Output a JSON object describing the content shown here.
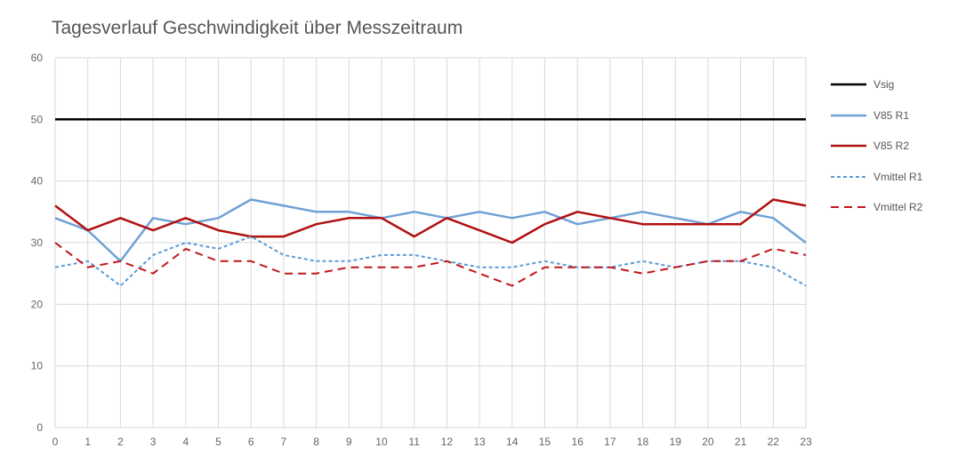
{
  "chart_data": {
    "type": "line",
    "title": "Tagesverlauf Geschwindigkeit über Messzeitraum",
    "xlabel": "",
    "ylabel": "",
    "x": [
      0,
      1,
      2,
      3,
      4,
      5,
      6,
      7,
      8,
      9,
      10,
      11,
      12,
      13,
      14,
      15,
      16,
      17,
      18,
      19,
      20,
      21,
      22,
      23
    ],
    "ylim": [
      0,
      60
    ],
    "yticks": [
      0,
      10,
      20,
      30,
      40,
      50,
      60
    ],
    "grid": true,
    "legend_position": "right",
    "series": [
      {
        "name": "Vsig",
        "color": "#000000",
        "dash": "solid",
        "width": 2.5,
        "values": [
          50,
          50,
          50,
          50,
          50,
          50,
          50,
          50,
          50,
          50,
          50,
          50,
          50,
          50,
          50,
          50,
          50,
          50,
          50,
          50,
          50,
          50,
          50,
          50
        ]
      },
      {
        "name": "V85 R1",
        "color": "#6fa1d6",
        "dash": "solid",
        "width": 2.5,
        "values": [
          34,
          32,
          27,
          34,
          33,
          34,
          37,
          36,
          35,
          35,
          34,
          35,
          34,
          35,
          34,
          35,
          33,
          34,
          35,
          34,
          33,
          35,
          34,
          30
        ]
      },
      {
        "name": "V85 R2",
        "color": "#b01010",
        "dash": "solid",
        "width": 2.5,
        "values": [
          36,
          32,
          34,
          32,
          34,
          32,
          31,
          31,
          33,
          34,
          34,
          31,
          34,
          32,
          30,
          33,
          35,
          34,
          33,
          33,
          33,
          33,
          37,
          36
        ]
      },
      {
        "name": "Vmittel R1",
        "color": "#5b9bd5",
        "dash": "dotted",
        "width": 2,
        "values": [
          26,
          27,
          23,
          28,
          30,
          29,
          31,
          28,
          27,
          27,
          28,
          28,
          27,
          26,
          26,
          27,
          26,
          26,
          27,
          26,
          27,
          27,
          26,
          23
        ]
      },
      {
        "name": "Vmittel R2",
        "color": "#c0161a",
        "dash": "dashed",
        "width": 2,
        "values": [
          30,
          26,
          27,
          25,
          29,
          27,
          27,
          25,
          25,
          26,
          26,
          26,
          27,
          25,
          23,
          26,
          26,
          26,
          25,
          26,
          27,
          27,
          29,
          28
        ]
      }
    ]
  }
}
